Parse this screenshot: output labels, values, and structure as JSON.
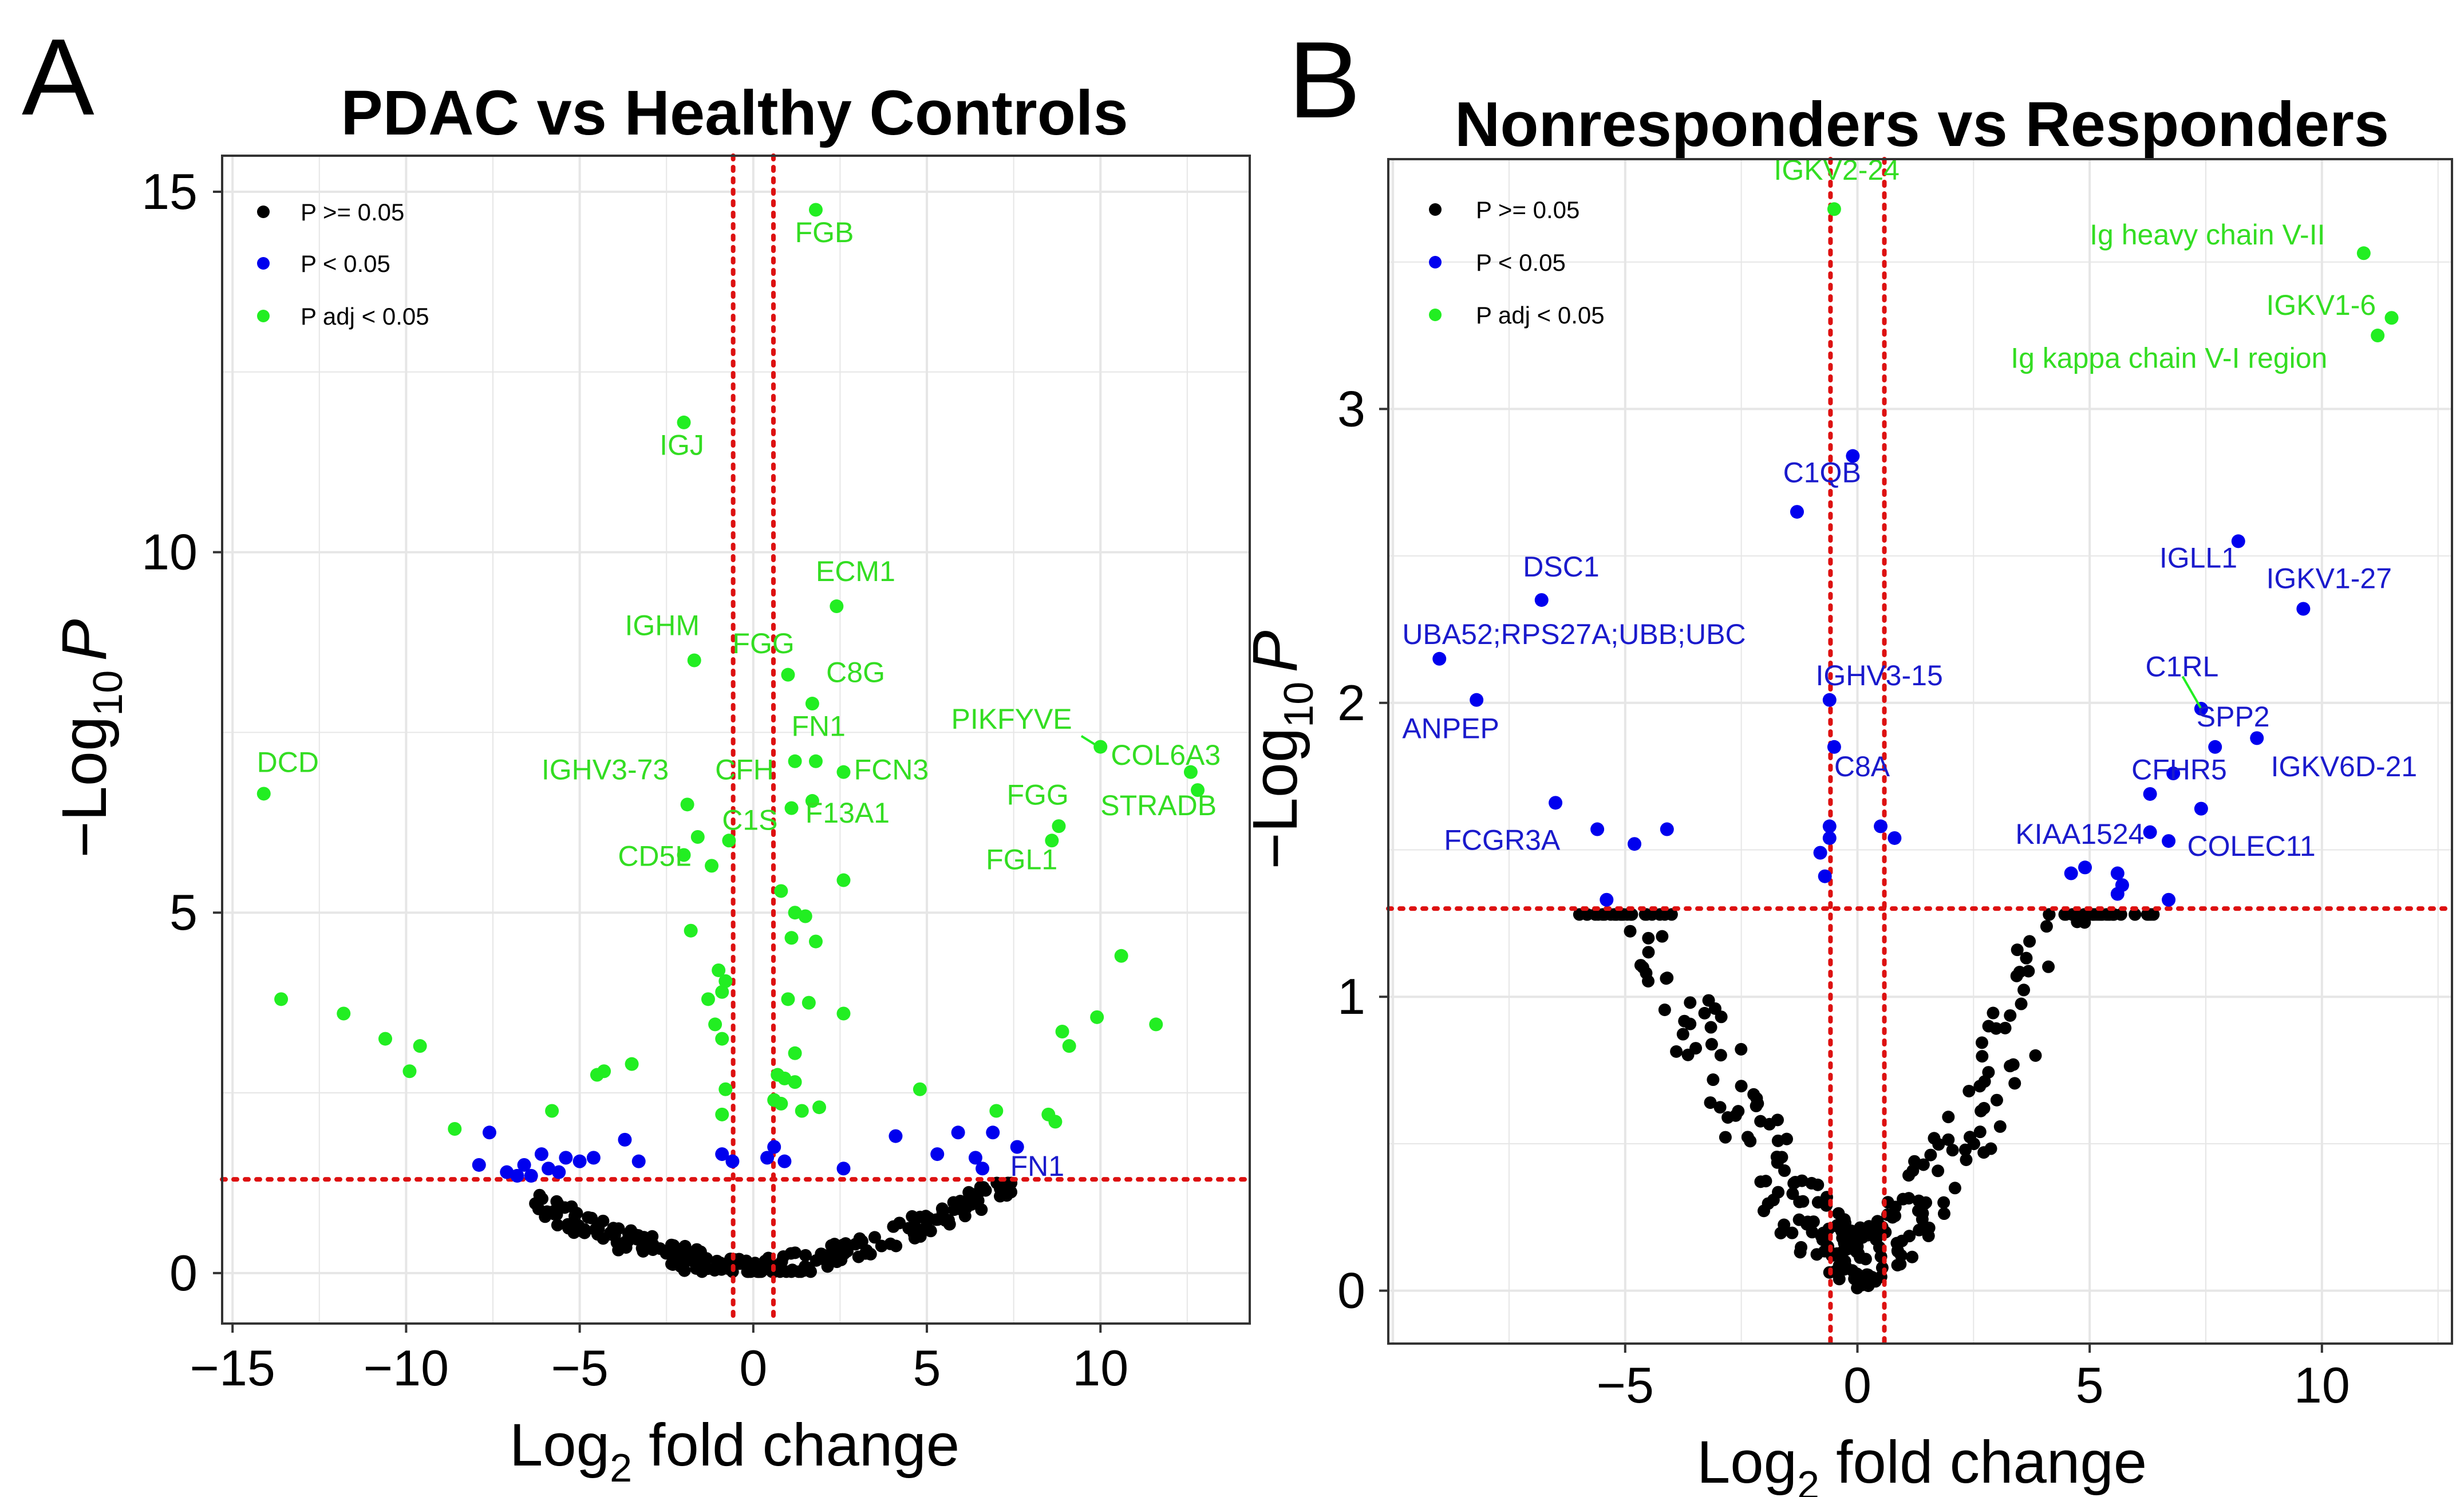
{
  "colors": {
    "ns": "#000000",
    "p": "#0000ee",
    "padj": "#22ee22",
    "threshold": "#dd1111",
    "grid": "#e6e6e6",
    "frame": "#333333"
  },
  "panels": [
    {
      "letter": "A",
      "title": "PDAC vs Healthy Controls",
      "xlabel_main": "Log",
      "xlabel_sub": "2",
      "xlabel_rest": " fold change",
      "ylabel_prefix": "−Log",
      "ylabel_sub": "10",
      "ylabel_p": "P",
      "legend": [
        {
          "label": "P >= 0.05",
          "cat": "ns"
        },
        {
          "label": "P < 0.05",
          "cat": "p"
        },
        {
          "label": "P adj < 0.05",
          "cat": "padj"
        }
      ]
    },
    {
      "letter": "B",
      "title": "Nonresponders vs Responders",
      "xlabel_main": "Log",
      "xlabel_sub": "2",
      "xlabel_rest": " fold change",
      "ylabel_prefix": "−Log",
      "ylabel_sub": "10",
      "ylabel_p": "P",
      "legend": [
        {
          "label": "P >= 0.05",
          "cat": "ns"
        },
        {
          "label": "P < 0.05",
          "cat": "p"
        },
        {
          "label": "P adj < 0.05",
          "cat": "padj"
        }
      ]
    }
  ],
  "chart_data": [
    {
      "type": "scatter",
      "title": "PDAC vs Healthy Controls",
      "xlabel": "Log2 fold change",
      "ylabel": "-Log10 P",
      "xlim": [
        -15.3,
        14.3
      ],
      "ylim": [
        -0.7,
        15.5
      ],
      "xticks": [
        -15,
        -10,
        -5,
        0,
        5,
        10
      ],
      "xtick_labels": [
        "−15",
        "−10",
        "−5",
        "0",
        "5",
        "10"
      ],
      "yticks": [
        0,
        5,
        10,
        15
      ],
      "ytick_labels": [
        "0",
        "5",
        "10",
        "15"
      ],
      "grid": true,
      "legend_position": "top-left",
      "thresholds": {
        "x": [
          -0.58,
          0.58
        ],
        "y": 1.3
      },
      "points": {
        "padj": [
          [
            1.8,
            14.75
          ],
          [
            -2.0,
            11.8
          ],
          [
            2.4,
            9.25
          ],
          [
            -1.7,
            8.5
          ],
          [
            1.0,
            8.3
          ],
          [
            1.7,
            7.9
          ],
          [
            10.0,
            7.3
          ],
          [
            12.6,
            6.95
          ],
          [
            12.8,
            6.7
          ],
          [
            -14.1,
            6.65
          ],
          [
            1.2,
            7.1
          ],
          [
            1.8,
            7.1
          ],
          [
            2.6,
            6.95
          ],
          [
            -1.9,
            6.5
          ],
          [
            1.1,
            6.45
          ],
          [
            1.7,
            6.55
          ],
          [
            -1.6,
            6.05
          ],
          [
            -0.7,
            6.0
          ],
          [
            8.8,
            6.2
          ],
          [
            8.6,
            6.0
          ],
          [
            -2.0,
            5.8
          ],
          [
            -1.2,
            5.65
          ],
          [
            2.6,
            5.45
          ],
          [
            0.8,
            5.3
          ],
          [
            1.2,
            5.0
          ],
          [
            1.5,
            4.95
          ],
          [
            -1.8,
            4.75
          ],
          [
            1.1,
            4.65
          ],
          [
            1.8,
            4.6
          ],
          [
            -1.0,
            4.2
          ],
          [
            -0.8,
            4.05
          ],
          [
            -0.9,
            3.9
          ],
          [
            -1.3,
            3.8
          ],
          [
            1.0,
            3.8
          ],
          [
            1.6,
            3.75
          ],
          [
            -13.6,
            3.8
          ],
          [
            -11.8,
            3.6
          ],
          [
            2.6,
            3.6
          ],
          [
            -10.6,
            3.25
          ],
          [
            -9.6,
            3.15
          ],
          [
            8.9,
            3.35
          ],
          [
            9.1,
            3.15
          ],
          [
            9.9,
            3.55
          ],
          [
            10.6,
            4.4
          ],
          [
            11.6,
            3.45
          ],
          [
            -1.1,
            3.45
          ],
          [
            -0.9,
            3.25
          ],
          [
            1.2,
            3.05
          ],
          [
            -9.9,
            2.8
          ],
          [
            -4.5,
            2.75
          ],
          [
            -4.3,
            2.8
          ],
          [
            -3.5,
            2.9
          ],
          [
            0.7,
            2.75
          ],
          [
            0.9,
            2.7
          ],
          [
            1.2,
            2.65
          ],
          [
            -0.8,
            2.55
          ],
          [
            4.8,
            2.55
          ],
          [
            7.0,
            2.25
          ],
          [
            -8.6,
            2.0
          ],
          [
            -5.8,
            2.25
          ],
          [
            0.6,
            2.4
          ],
          [
            0.8,
            2.35
          ],
          [
            1.4,
            2.25
          ],
          [
            1.9,
            2.3
          ],
          [
            8.5,
            2.2
          ],
          [
            8.7,
            2.1
          ],
          [
            -0.9,
            2.2
          ]
        ],
        "p": [
          [
            -7.6,
            1.95
          ],
          [
            -7.9,
            1.5
          ],
          [
            -6.6,
            1.5
          ],
          [
            -6.1,
            1.65
          ],
          [
            -5.9,
            1.45
          ],
          [
            -5.4,
            1.6
          ],
          [
            -5.0,
            1.55
          ],
          [
            -3.7,
            1.85
          ],
          [
            -3.3,
            1.55
          ],
          [
            -6.8,
            1.35
          ],
          [
            -6.4,
            1.35
          ],
          [
            -5.6,
            1.4
          ],
          [
            -4.6,
            1.6
          ],
          [
            -0.9,
            1.65
          ],
          [
            -0.6,
            1.55
          ],
          [
            0.4,
            1.6
          ],
          [
            0.6,
            1.75
          ],
          [
            0.9,
            1.55
          ],
          [
            2.6,
            1.45
          ],
          [
            4.1,
            1.9
          ],
          [
            5.3,
            1.65
          ],
          [
            5.9,
            1.95
          ],
          [
            6.4,
            1.6
          ],
          [
            6.6,
            1.45
          ],
          [
            6.9,
            1.95
          ],
          [
            7.6,
            1.75
          ],
          [
            -7.1,
            1.4
          ]
        ],
        "ns_ranges": [
          [
            -6.5,
            -4.5
          ],
          [
            -4.5,
            -2.5
          ],
          [
            -2.5,
            -1.0
          ],
          [
            -1.0,
            1.0
          ],
          [
            1.0,
            3.0
          ],
          [
            3.0,
            5.5
          ],
          [
            5.5,
            7.5
          ]
        ]
      },
      "labels": [
        {
          "text": "FGB",
          "x": 1.2,
          "y": 14.3,
          "cat": "padj"
        },
        {
          "text": "IGJ",
          "x": -2.7,
          "y": 11.35,
          "cat": "padj"
        },
        {
          "text": "ECM1",
          "x": 1.8,
          "y": 9.6,
          "cat": "padj"
        },
        {
          "text": "IGHM",
          "x": -3.7,
          "y": 8.85,
          "cat": "padj"
        },
        {
          "text": "FGG",
          "x": -0.6,
          "y": 8.6,
          "cat": "padj"
        },
        {
          "text": "C8G",
          "x": 2.1,
          "y": 8.2,
          "cat": "padj"
        },
        {
          "text": "PIKFYVE",
          "x": 5.7,
          "y": 7.55,
          "cat": "padj"
        },
        {
          "text": "COL6A3",
          "x": 10.3,
          "y": 7.05,
          "cat": "padj"
        },
        {
          "text": "DCD",
          "x": -14.3,
          "y": 6.95,
          "cat": "padj"
        },
        {
          "text": "FN1",
          "x": 1.1,
          "y": 7.45,
          "cat": "padj"
        },
        {
          "text": "IGHV3-73",
          "x": -6.1,
          "y": 6.85,
          "cat": "padj"
        },
        {
          "text": "CFH",
          "x": -1.1,
          "y": 6.85,
          "cat": "padj"
        },
        {
          "text": "FCN3",
          "x": 2.9,
          "y": 6.85,
          "cat": "padj"
        },
        {
          "text": "FGG",
          "x": 7.3,
          "y": 6.5,
          "cat": "padj"
        },
        {
          "text": "STRADB",
          "x": 10.0,
          "y": 6.35,
          "cat": "padj"
        },
        {
          "text": "C1S",
          "x": -0.9,
          "y": 6.15,
          "cat": "padj"
        },
        {
          "text": "F13A1",
          "x": 1.5,
          "y": 6.25,
          "cat": "padj"
        },
        {
          "text": "CD5L",
          "x": -3.9,
          "y": 5.65,
          "cat": "padj"
        },
        {
          "text": "FGL1",
          "x": 6.7,
          "y": 5.6,
          "cat": "padj"
        },
        {
          "text": "FN1",
          "x": 7.4,
          "y": 1.35,
          "cat": "p"
        }
      ],
      "leaders": [
        {
          "x1": 9.45,
          "y1": 7.45,
          "x2": 9.95,
          "y2": 7.3
        }
      ]
    },
    {
      "type": "scatter",
      "title": "Nonresponders vs Responders",
      "xlabel": "Log2 fold change",
      "ylabel": "-Log10 P",
      "xlim": [
        -10.1,
        12.8
      ],
      "ylim": [
        -0.18,
        3.85
      ],
      "xticks": [
        -5,
        0,
        5,
        10
      ],
      "xtick_labels": [
        "−5",
        "0",
        "5",
        "10"
      ],
      "yticks": [
        0,
        1,
        2,
        3
      ],
      "ytick_labels": [
        "0",
        "1",
        "2",
        "3"
      ],
      "grid": true,
      "legend_position": "top-left",
      "thresholds": {
        "x": [
          -0.58,
          0.58
        ],
        "y": 1.3
      },
      "points": {
        "padj": [
          [
            -0.5,
            3.68
          ],
          [
            10.9,
            3.53
          ],
          [
            11.5,
            3.31
          ],
          [
            11.2,
            3.25
          ]
        ],
        "p": [
          [
            -0.1,
            2.84
          ],
          [
            -1.3,
            2.65
          ],
          [
            -6.8,
            2.35
          ],
          [
            -9.0,
            2.15
          ],
          [
            -8.2,
            2.01
          ],
          [
            -0.6,
            2.01
          ],
          [
            -6.5,
            1.66
          ],
          [
            -5.6,
            1.57
          ],
          [
            -4.8,
            1.52
          ],
          [
            -4.1,
            1.57
          ],
          [
            -5.4,
            1.33
          ],
          [
            -0.8,
            1.49
          ],
          [
            -0.6,
            1.54
          ],
          [
            -0.6,
            1.58
          ],
          [
            -0.7,
            1.41
          ],
          [
            0.5,
            1.58
          ],
          [
            0.8,
            1.54
          ],
          [
            -0.5,
            1.85
          ],
          [
            8.2,
            2.55
          ],
          [
            9.6,
            2.32
          ],
          [
            7.4,
            1.98
          ],
          [
            7.7,
            1.85
          ],
          [
            8.6,
            1.88
          ],
          [
            6.8,
            1.76
          ],
          [
            6.3,
            1.69
          ],
          [
            6.3,
            1.56
          ],
          [
            6.7,
            1.53
          ],
          [
            7.4,
            1.64
          ],
          [
            4.6,
            1.42
          ],
          [
            4.9,
            1.44
          ],
          [
            5.6,
            1.42
          ],
          [
            5.7,
            1.38
          ],
          [
            5.6,
            1.35
          ],
          [
            6.7,
            1.33
          ]
        ],
        "ns_ranges": [
          [
            -6.0,
            -3.5
          ],
          [
            -3.5,
            -1.5
          ],
          [
            -1.5,
            -0.3
          ],
          [
            -0.3,
            0.3
          ],
          [
            0.3,
            1.5
          ],
          [
            1.5,
            3.5
          ],
          [
            3.5,
            6.5
          ]
        ]
      },
      "labels": [
        {
          "text": "IGKV2-24",
          "x": -1.8,
          "y": 3.78,
          "cat": "padj"
        },
        {
          "text": "Ig heavy chain V-II",
          "x": 5.0,
          "y": 3.56,
          "cat": "padj"
        },
        {
          "text": "IGKV1-6",
          "x": 8.8,
          "y": 3.32,
          "cat": "padj"
        },
        {
          "text": "Ig kappa chain V-I region",
          "x": 3.3,
          "y": 3.14,
          "cat": "padj"
        },
        {
          "text": "C1QB",
          "x": -1.6,
          "y": 2.75,
          "cat": "p"
        },
        {
          "text": "DSC1",
          "x": -7.2,
          "y": 2.43,
          "cat": "p"
        },
        {
          "text": "IGLL1",
          "x": 6.5,
          "y": 2.46,
          "cat": "p"
        },
        {
          "text": "IGKV1-27",
          "x": 8.8,
          "y": 2.39,
          "cat": "p"
        },
        {
          "text": "UBA52;RPS27A;UBB;UBC",
          "x": -9.8,
          "y": 2.2,
          "cat": "p"
        },
        {
          "text": "C1RL",
          "x": 6.2,
          "y": 2.09,
          "cat": "p"
        },
        {
          "text": "IGHV3-15",
          "x": -0.9,
          "y": 2.06,
          "cat": "p"
        },
        {
          "text": "ANPEP",
          "x": -9.8,
          "y": 1.88,
          "cat": "p"
        },
        {
          "text": "SPP2",
          "x": 7.3,
          "y": 1.92,
          "cat": "p"
        },
        {
          "text": "IGKV6D-21",
          "x": 8.9,
          "y": 1.75,
          "cat": "p"
        },
        {
          "text": "C8A",
          "x": -0.5,
          "y": 1.75,
          "cat": "p"
        },
        {
          "text": "CFHR5",
          "x": 5.9,
          "y": 1.74,
          "cat": "p"
        },
        {
          "text": "FCGR3A",
          "x": -8.9,
          "y": 1.5,
          "cat": "p"
        },
        {
          "text": "KIAA1524",
          "x": 3.4,
          "y": 1.52,
          "cat": "p"
        },
        {
          "text": "COLEC11",
          "x": 7.1,
          "y": 1.48,
          "cat": "p"
        }
      ],
      "leaders": [
        {
          "x1": 7.0,
          "y1": 2.09,
          "x2": 7.4,
          "y2": 1.98
        }
      ]
    }
  ]
}
